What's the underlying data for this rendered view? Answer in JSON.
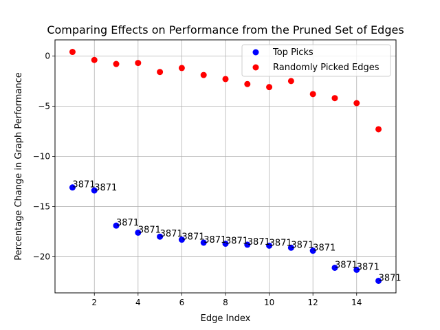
{
  "chart_data": {
    "type": "scatter",
    "title": "Comparing Effects on Performance from the Pruned Set of Edges",
    "xlabel": "Edge Index",
    "ylabel": "Percentage Change in Graph Performance",
    "xlim": [
      0.2,
      15.8
    ],
    "ylim": [
      -23.6,
      1.6
    ],
    "xticks": [
      2,
      4,
      6,
      8,
      10,
      12,
      14
    ],
    "yticks": [
      0,
      -5,
      -10,
      -15,
      -20
    ],
    "grid": true,
    "legend": {
      "position": "top-right"
    },
    "series": [
      {
        "name": "Top Picks",
        "color": "#0000ff",
        "x": [
          1,
          2,
          3,
          4,
          5,
          6,
          7,
          8,
          9,
          10,
          11,
          12,
          13,
          14,
          15
        ],
        "y": [
          -13.1,
          -13.4,
          -16.9,
          -17.6,
          -18.0,
          -18.3,
          -18.6,
          -18.7,
          -18.8,
          -18.9,
          -19.1,
          -19.4,
          -21.1,
          -21.3,
          -22.4
        ],
        "labels": [
          "3871",
          "3871",
          "3871",
          "3871",
          "3871",
          "3871",
          "3871",
          "3871",
          "3871",
          "3871",
          "3871",
          "3871",
          "3871",
          "3871",
          "3871"
        ]
      },
      {
        "name": "Randomly Picked Edges",
        "color": "#ff0000",
        "x": [
          1,
          2,
          3,
          4,
          5,
          6,
          7,
          8,
          9,
          10,
          11,
          12,
          13,
          14,
          15
        ],
        "y": [
          0.4,
          -0.4,
          -0.8,
          -0.7,
          -1.6,
          -1.2,
          -1.9,
          -2.3,
          -2.8,
          -3.1,
          -2.5,
          -3.8,
          -4.2,
          -4.7,
          -7.3
        ],
        "labels": []
      }
    ]
  }
}
